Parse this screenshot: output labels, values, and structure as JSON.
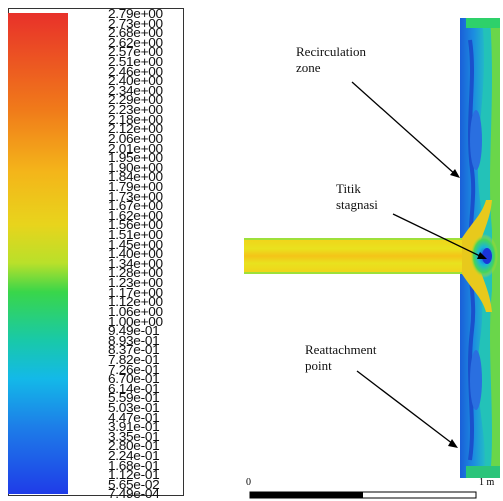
{
  "colorbar": {
    "ticks": [
      "2.79e+00",
      "2.73e+00",
      "2.68e+00",
      "2.62e+00",
      "2.57e+00",
      "2.51e+00",
      "2.46e+00",
      "2.40e+00",
      "2.34e+00",
      "2.29e+00",
      "2.23e+00",
      "2.18e+00",
      "2.12e+00",
      "2.06e+00",
      "2.01e+00",
      "1.95e+00",
      "1.90e+00",
      "1.84e+00",
      "1.79e+00",
      "1.73e+00",
      "1.67e+00",
      "1.62e+00",
      "1.56e+00",
      "1.51e+00",
      "1.45e+00",
      "1.40e+00",
      "1.34e+00",
      "1.28e+00",
      "1.23e+00",
      "1.17e+00",
      "1.12e+00",
      "1.06e+00",
      "1.00e+00",
      "9.49e-01",
      "8.93e-01",
      "8.37e-01",
      "7.82e-01",
      "7.26e-01",
      "6.70e-01",
      "6.14e-01",
      "5.59e-01",
      "5.03e-01",
      "4.47e-01",
      "3.91e-01",
      "3.35e-01",
      "2.80e-01",
      "2.24e-01",
      "1.68e-01",
      "1.12e-01",
      "5.65e-02",
      "7.49e-04"
    ],
    "colors": {
      "top": "#e8312a",
      "mid": "#39d64a",
      "bottom": "#1f3ce8"
    }
  },
  "annotations": {
    "recirculation": "Recirculation\nzone",
    "stagnation": "Titik\nstagnasi",
    "reattachment": "Reattachment\npoint"
  },
  "axis": {
    "left_label": "0",
    "right_label": "1 m"
  }
}
